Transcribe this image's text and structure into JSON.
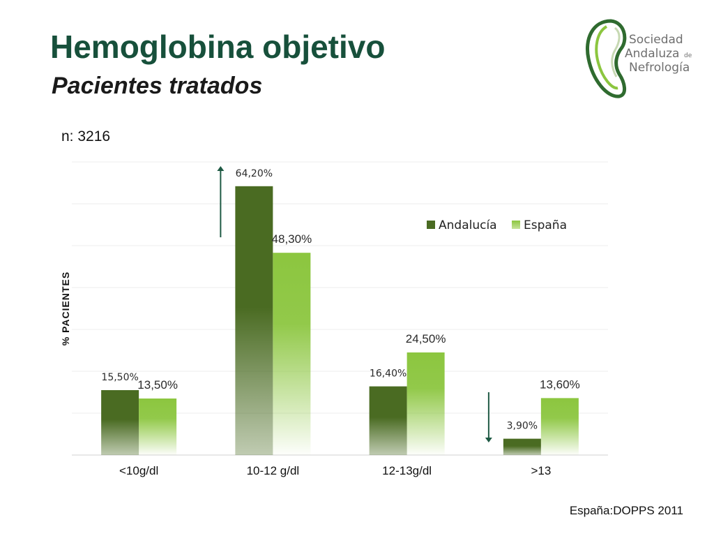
{
  "slide": {
    "title": "Hemoglobina objetivo",
    "subtitle": "Pacientes tratados",
    "n_label": "n: 3216",
    "source": "España:DOPPS 2011"
  },
  "logo": {
    "line1": "Sociedad",
    "line2": "Andaluza",
    "line2_small": "de",
    "line3": "Nefrología",
    "colors": {
      "green_dark": "#2f6b2f",
      "green_light": "#8cc63f",
      "gray": "#6f6f6f"
    }
  },
  "chart_data": {
    "type": "bar",
    "title": "",
    "xlabel": "",
    "ylabel": "% PACIENTES",
    "categories": [
      "<10g/dl",
      "10-12 g/dl",
      "12-13g/dl",
      ">13"
    ],
    "series": [
      {
        "name": "Andalucía",
        "color": "#4a6b22",
        "values": [
          15.5,
          64.2,
          16.4,
          3.9
        ],
        "value_labels": [
          "15,50%",
          "64,20%",
          "16,40%",
          "3,90%"
        ]
      },
      {
        "name": "España",
        "color": "#8cc63f",
        "values": [
          13.5,
          48.3,
          24.5,
          13.6
        ],
        "value_labels": [
          "13,50%",
          "48,30%",
          "24,50%",
          "13,60%"
        ]
      }
    ],
    "ylim": [
      0,
      70
    ],
    "grid": true,
    "legend_position": "top-right",
    "annotations": [
      {
        "type": "arrow-up",
        "category": "10-12 g/dl"
      },
      {
        "type": "arrow-down",
        "category": ">13"
      }
    ]
  }
}
